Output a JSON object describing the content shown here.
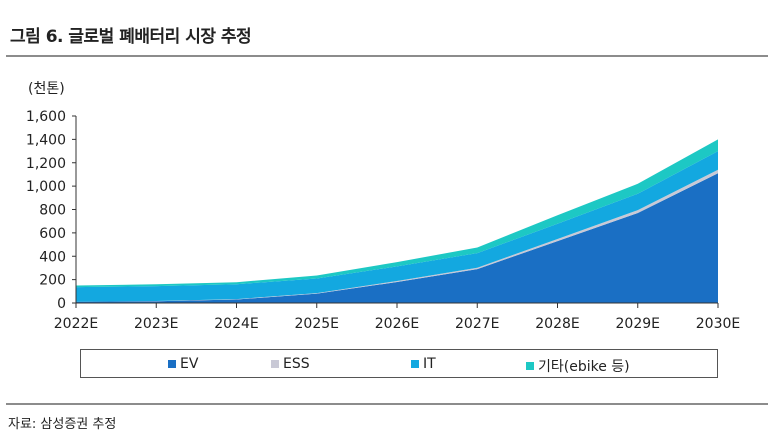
{
  "header": {
    "title": "그림 6. 글로벌 폐배터리 시장 추정"
  },
  "footer": {
    "source": "자료: 삼성증권 추정"
  },
  "chart_data": {
    "type": "area",
    "stacked": true,
    "unit_label": "(천톤)",
    "x": [
      "2022E",
      "2023E",
      "2024E",
      "2025E",
      "2026E",
      "2027E",
      "2028E",
      "2029E",
      "2030E"
    ],
    "ylim": [
      0,
      1600
    ],
    "yticks": [
      "0",
      "200",
      "400",
      "600",
      "800",
      "1,000",
      "1,200",
      "1,400",
      "1,600"
    ],
    "ytick_values": [
      0,
      200,
      400,
      600,
      800,
      1000,
      1200,
      1400,
      1600
    ],
    "series": [
      {
        "name": "EV",
        "color": "#1a6fc4",
        "values": [
          10,
          15,
          30,
          80,
          180,
          290,
          530,
          770,
          1110
        ]
      },
      {
        "name": "ESS",
        "color": "#c9c9d6",
        "values": [
          1,
          2,
          3,
          5,
          8,
          12,
          18,
          25,
          30
        ]
      },
      {
        "name": "IT",
        "color": "#13a8e0",
        "values": [
          125,
          128,
          128,
          125,
          125,
          125,
          130,
          140,
          160
        ]
      },
      {
        "name": "기타(ebike 등)",
        "color": "#1dc8c4",
        "values": [
          14,
          15,
          17,
          25,
          37,
          48,
          72,
          85,
          100
        ]
      }
    ],
    "legend_position": "bottom",
    "grid": false
  }
}
